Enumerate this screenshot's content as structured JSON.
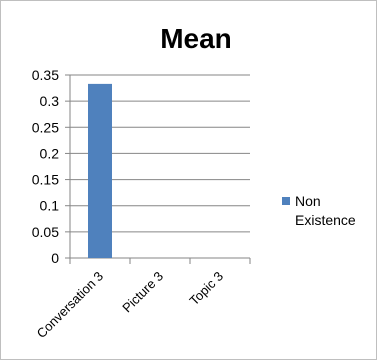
{
  "chart_data": {
    "type": "bar",
    "title": "Mean",
    "xlabel": "",
    "ylabel": "",
    "categories": [
      "Conversation 3",
      "Picture 3",
      "Topic 3"
    ],
    "series": [
      {
        "name": "Non Existence",
        "color": "#4f81bd",
        "values": [
          0.333,
          0,
          0
        ]
      }
    ],
    "ylim": [
      0,
      0.35
    ],
    "y_ticks": [
      "0",
      "0.05",
      "0.1",
      "0.15",
      "0.2",
      "0.25",
      "0.3",
      "0.35"
    ],
    "grid": true,
    "legend": {
      "position": "right",
      "lines": [
        "Non",
        "Existence"
      ]
    }
  }
}
